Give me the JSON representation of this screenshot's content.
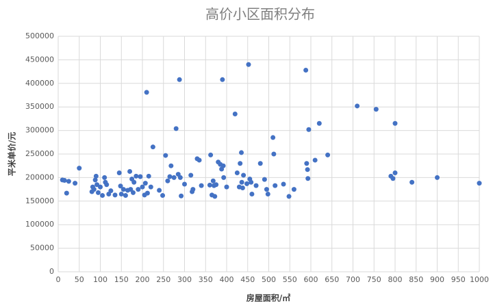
{
  "chart_data": {
    "type": "scatter",
    "title": "高价小区面积分布",
    "x_label": "房屋面积/㎡",
    "y_label": "平米单价/元",
    "color": "#4472c4",
    "grid": true,
    "xlim": [
      0,
      1000
    ],
    "xticks": [
      0,
      50,
      100,
      150,
      200,
      250,
      300,
      350,
      400,
      450,
      500,
      550,
      600,
      650,
      700,
      750,
      800,
      850,
      900,
      950,
      1000
    ],
    "ylim": [
      0,
      500000
    ],
    "yticks": [
      0,
      50000,
      100000,
      150000,
      200000,
      250000,
      300000,
      350000,
      400000,
      450000,
      500000
    ],
    "x": [
      10,
      15,
      20,
      25,
      40,
      50,
      80,
      82,
      85,
      88,
      90,
      92,
      95,
      100,
      105,
      110,
      112,
      115,
      120,
      125,
      135,
      145,
      148,
      150,
      155,
      160,
      165,
      170,
      172,
      175,
      178,
      180,
      185,
      190,
      195,
      200,
      205,
      207,
      210,
      212,
      215,
      220,
      225,
      240,
      248,
      255,
      260,
      265,
      268,
      275,
      280,
      285,
      288,
      290,
      292,
      300,
      315,
      318,
      320,
      330,
      335,
      340,
      360,
      362,
      365,
      368,
      370,
      372,
      375,
      380,
      385,
      388,
      390,
      392,
      393,
      400,
      420,
      425,
      430,
      432,
      435,
      436,
      438,
      440,
      448,
      452,
      455,
      458,
      460,
      470,
      480,
      490,
      495,
      498,
      510,
      512,
      515,
      535,
      548,
      560,
      588,
      590,
      592,
      593,
      595,
      610,
      620,
      640,
      710,
      755,
      790,
      795,
      800,
      800,
      840,
      900,
      1000
    ],
    "values": [
      195000,
      194000,
      167000,
      192000,
      188000,
      220000,
      170000,
      180000,
      175000,
      195000,
      203000,
      185000,
      168000,
      180000,
      162000,
      200000,
      190000,
      185000,
      165000,
      172000,
      163000,
      210000,
      182000,
      165000,
      175000,
      162000,
      173000,
      213000,
      175000,
      197000,
      168000,
      190000,
      203000,
      175000,
      202000,
      180000,
      163000,
      188000,
      381000,
      167000,
      203000,
      180000,
      265000,
      173000,
      162000,
      247000,
      193000,
      202000,
      225000,
      200000,
      304000,
      207000,
      408000,
      200000,
      161000,
      186000,
      205000,
      170000,
      175000,
      240000,
      237000,
      183000,
      184000,
      248000,
      163000,
      193000,
      183000,
      160000,
      185000,
      233000,
      228000,
      218000,
      408000,
      225000,
      200000,
      180000,
      335000,
      210000,
      180000,
      230000,
      253000,
      190000,
      178000,
      205000,
      187000,
      440000,
      197000,
      190000,
      165000,
      183000,
      230000,
      196000,
      175000,
      165000,
      285000,
      250000,
      183000,
      186000,
      160000,
      175000,
      428000,
      230000,
      217000,
      198000,
      302000,
      237000,
      315000,
      248000,
      352000,
      345000,
      203000,
      198000,
      315000,
      210000,
      190000,
      200000,
      188000
    ]
  }
}
